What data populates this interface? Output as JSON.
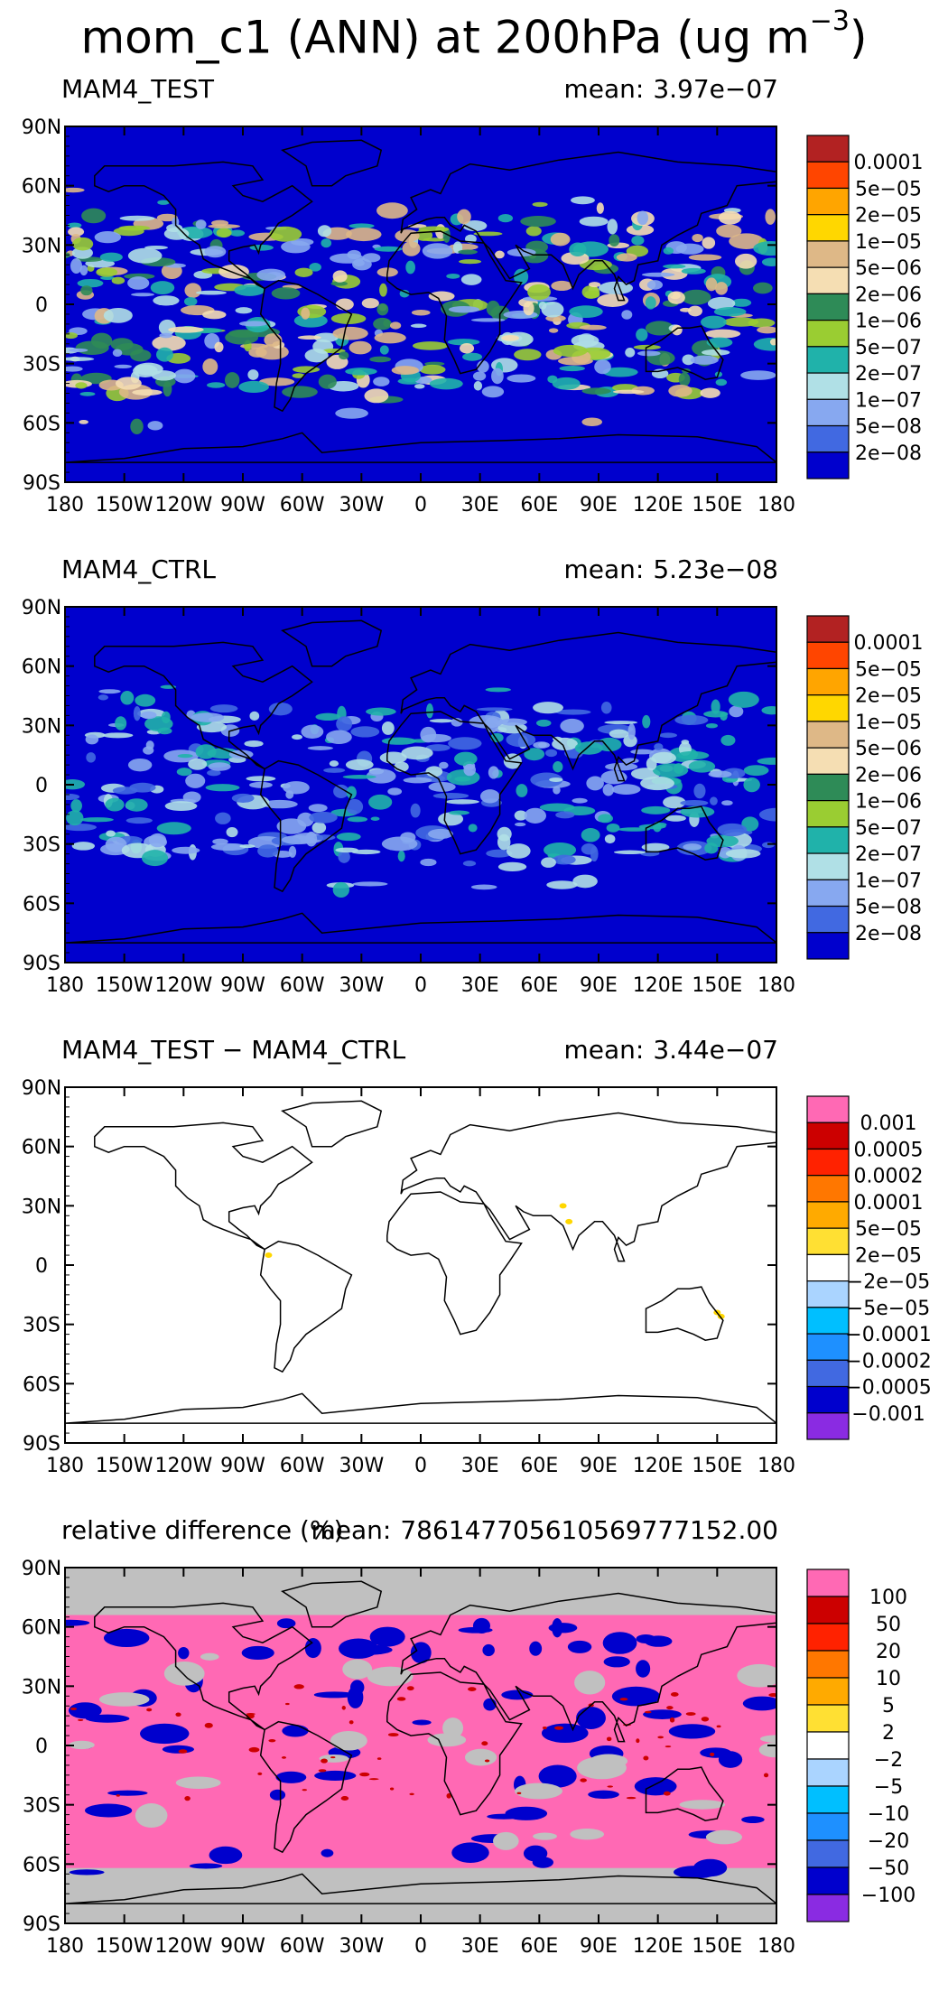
{
  "figure": {
    "title_main": "mom_c1 (ANN) at 200hPa (ug m",
    "title_sup": "−3",
    "title_close": ")"
  },
  "axes": {
    "lat_labels": [
      "90N",
      "60N",
      "30N",
      "0",
      "30S",
      "60S",
      "90S"
    ],
    "lon_labels": [
      "180",
      "150W",
      "120W",
      "90W",
      "60W",
      "30W",
      "0",
      "30E",
      "60E",
      "90E",
      "120E",
      "150E",
      "180"
    ]
  },
  "panels": [
    {
      "title": "MAM4_TEST",
      "mean_label": "mean:",
      "mean_value": "3.97e−07",
      "colorbar": {
        "labels": [
          "0.0001",
          "5e−05",
          "2e−05",
          "1e−05",
          "5e−06",
          "2e−06",
          "1e−06",
          "5e−07",
          "2e−07",
          "1e−07",
          "5e−08",
          "2e−08"
        ],
        "colors": [
          "#b22222",
          "#ff4500",
          "#ffa500",
          "#ffd700",
          "#deb887",
          "#f5deb3",
          "#2e8b57",
          "#9acd32",
          "#20b2aa",
          "#b0e0e6",
          "#87a8f0",
          "#4169e1",
          "#0000cd"
        ]
      },
      "background": "#0000cd"
    },
    {
      "title": "MAM4_CTRL",
      "mean_label": "mean:",
      "mean_value": "5.23e−08",
      "colorbar": {
        "labels": [
          "0.0001",
          "5e−05",
          "2e−05",
          "1e−05",
          "5e−06",
          "2e−06",
          "1e−06",
          "5e−07",
          "2e−07",
          "1e−07",
          "5e−08",
          "2e−08"
        ],
        "colors": [
          "#b22222",
          "#ff4500",
          "#ffa500",
          "#ffd700",
          "#deb887",
          "#f5deb3",
          "#2e8b57",
          "#9acd32",
          "#20b2aa",
          "#b0e0e6",
          "#87a8f0",
          "#4169e1",
          "#0000cd"
        ]
      },
      "background": "#0000cd"
    },
    {
      "title": "MAM4_TEST − MAM4_CTRL",
      "mean_label": "mean:",
      "mean_value": "3.44e−07",
      "colorbar": {
        "labels": [
          "0.001",
          "0.0005",
          "0.0002",
          "0.0001",
          "5e−05",
          "2e−05",
          "−2e−05",
          "−5e−05",
          "−0.0001",
          "−0.0002",
          "−0.0005",
          "−0.001"
        ],
        "colors": [
          "#ff69b4",
          "#cc0000",
          "#ff2200",
          "#ff7700",
          "#ffaa00",
          "#ffe033",
          "#ffffff",
          "#aad4ff",
          "#00bfff",
          "#1e90ff",
          "#4169e1",
          "#0000cd",
          "#8a2be2"
        ]
      },
      "background": "#ffffff"
    },
    {
      "title": "relative difference (%)",
      "mean_label": "mean:",
      "mean_value": "786147705610569777152.00",
      "colorbar": {
        "labels": [
          "100",
          "50",
          "20",
          "10",
          "5",
          "2",
          "−2",
          "−5",
          "−10",
          "−20",
          "−50",
          "−100"
        ],
        "colors": [
          "#ff69b4",
          "#cc0000",
          "#ff2200",
          "#ff7700",
          "#ffaa00",
          "#ffe033",
          "#ffffff",
          "#aad4ff",
          "#00bfff",
          "#1e90ff",
          "#4169e1",
          "#0000cd",
          "#8a2be2"
        ]
      },
      "background": "#ff69b4"
    }
  ]
}
